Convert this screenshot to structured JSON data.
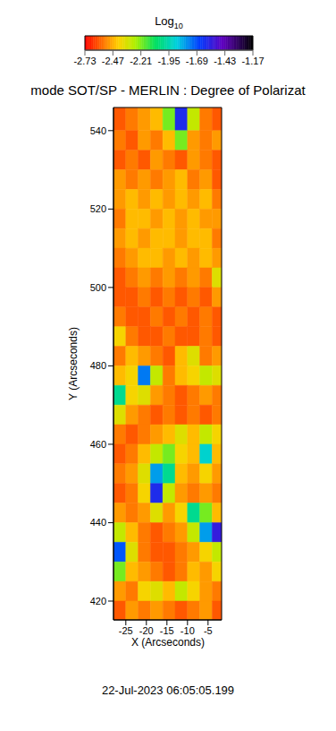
{
  "chart_data": {
    "type": "heatmap",
    "title": "mode SOT/SP - MERLIN : Degree of Polarizat",
    "x_label": "X (Arcseconds)",
    "y_label": "Y (Arcseconds)",
    "annotation": "22-Jul-2023 06:05:05.199",
    "xlim": [
      -28,
      -1.7
    ],
    "xticks": [
      -25,
      -20,
      -15,
      -10,
      -5
    ],
    "ylim": [
      415.2,
      545.9
    ],
    "yticks": [
      420,
      440,
      460,
      480,
      500,
      520,
      540
    ],
    "grid": false,
    "x_edges": [
      -28,
      -25,
      -22,
      -19,
      -16,
      -13,
      -10,
      -7,
      -4,
      -1.7
    ],
    "y_edges": [
      545.9,
      540,
      535,
      530,
      525,
      520,
      515,
      510,
      505,
      500,
      495,
      490,
      485,
      480,
      475,
      470,
      465,
      460,
      455,
      450,
      445,
      440,
      435,
      430,
      425,
      420,
      415.2
    ],
    "cells": [
      [
        -2.6,
        -2.55,
        -2.5,
        -2.45,
        -2.2,
        -1.6,
        -2.3,
        -2.55,
        -2.6
      ],
      [
        -2.55,
        -2.6,
        -2.5,
        -2.55,
        -2.45,
        -2.2,
        -2.5,
        -2.55,
        -2.5
      ],
      [
        -2.6,
        -2.55,
        -2.6,
        -2.5,
        -2.55,
        -2.6,
        -2.5,
        -2.55,
        -2.6
      ],
      [
        -2.5,
        -2.55,
        -2.5,
        -2.55,
        -2.5,
        -2.45,
        -2.55,
        -2.5,
        -2.6
      ],
      [
        -2.5,
        -2.45,
        -2.5,
        -2.45,
        -2.5,
        -2.45,
        -2.5,
        -2.45,
        -2.55
      ],
      [
        -2.55,
        -2.45,
        -2.45,
        -2.5,
        -2.45,
        -2.5,
        -2.45,
        -2.5,
        -2.5
      ],
      [
        -2.5,
        -2.45,
        -2.5,
        -2.45,
        -2.45,
        -2.5,
        -2.45,
        -2.45,
        -2.55
      ],
      [
        -2.55,
        -2.5,
        -2.45,
        -2.45,
        -2.5,
        -2.45,
        -2.5,
        -2.45,
        -2.5
      ],
      [
        -2.6,
        -2.55,
        -2.5,
        -2.55,
        -2.5,
        -2.55,
        -2.5,
        -2.55,
        -2.35
      ],
      [
        -2.6,
        -2.6,
        -2.55,
        -2.6,
        -2.55,
        -2.6,
        -2.55,
        -2.6,
        -2.5
      ],
      [
        -2.55,
        -2.6,
        -2.6,
        -2.55,
        -2.6,
        -2.55,
        -2.6,
        -2.55,
        -2.6
      ],
      [
        -2.4,
        -2.55,
        -2.6,
        -2.6,
        -2.55,
        -2.6,
        -2.6,
        -2.55,
        -2.6
      ],
      [
        -2.55,
        -2.45,
        -2.5,
        -2.55,
        -2.6,
        -2.45,
        -2.35,
        -2.55,
        -2.5
      ],
      [
        -2.45,
        -2.4,
        -1.75,
        -2.3,
        -2.55,
        -2.45,
        -2.4,
        -2.3,
        -2.35
      ],
      [
        -2.0,
        -2.4,
        -2.35,
        -2.5,
        -2.55,
        -2.6,
        -2.55,
        -2.5,
        -2.55
      ],
      [
        -2.35,
        -2.5,
        -2.55,
        -2.6,
        -2.55,
        -2.6,
        -2.55,
        -2.6,
        -2.55
      ],
      [
        -2.55,
        -2.6,
        -2.55,
        -2.5,
        -2.45,
        -2.35,
        -2.45,
        -2.3,
        -2.4
      ],
      [
        -2.6,
        -2.55,
        -2.45,
        -2.3,
        -2.2,
        -2.4,
        -2.45,
        -1.9,
        -2.45
      ],
      [
        -2.55,
        -2.5,
        -2.35,
        -1.8,
        -2.0,
        -2.45,
        -2.5,
        -2.4,
        -2.5
      ],
      [
        -2.6,
        -2.55,
        -2.4,
        -1.6,
        -2.3,
        -2.5,
        -2.55,
        -2.5,
        -2.55
      ],
      [
        -2.5,
        -2.55,
        -2.5,
        -2.35,
        -2.5,
        -2.4,
        -2.0,
        -2.2,
        -2.45
      ],
      [
        -2.3,
        -2.45,
        -2.55,
        -2.6,
        -2.55,
        -2.5,
        -2.3,
        -1.8,
        -1.55
      ],
      [
        -1.7,
        -2.35,
        -2.55,
        -2.6,
        -2.6,
        -2.55,
        -2.5,
        -2.4,
        -2.3
      ],
      [
        -2.2,
        -2.45,
        -2.5,
        -2.55,
        -2.6,
        -2.55,
        -2.45,
        -2.5,
        -2.4
      ],
      [
        -2.5,
        -2.55,
        -2.4,
        -2.35,
        -2.45,
        -2.3,
        -2.4,
        -2.5,
        -2.55
      ],
      [
        -2.6,
        -2.5,
        -2.55,
        -2.5,
        -2.55,
        -2.6,
        -2.55,
        -2.5,
        -2.6
      ]
    ],
    "colorbar": {
      "label": "Log10",
      "range": [
        -2.73,
        -1.17
      ],
      "ticks": [
        -2.73,
        -2.47,
        -2.21,
        -1.95,
        -1.69,
        -1.43,
        -1.17
      ]
    }
  }
}
